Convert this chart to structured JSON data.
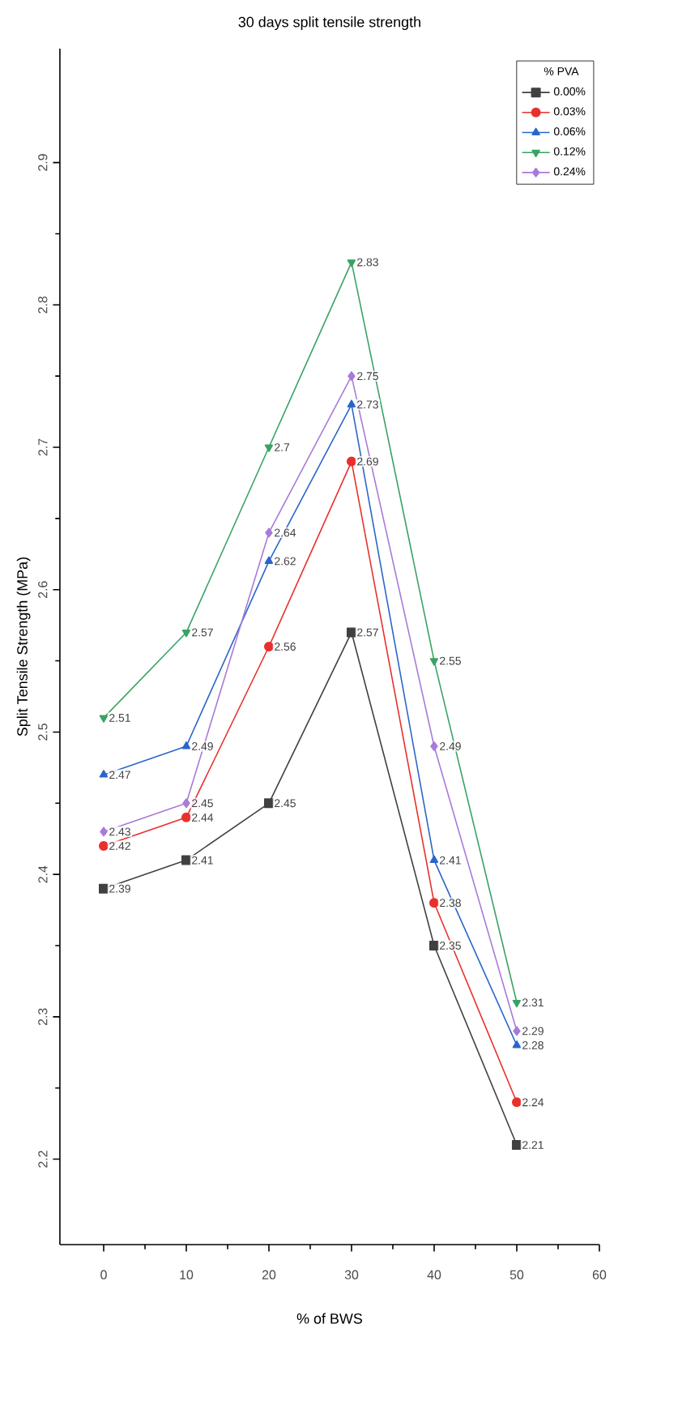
{
  "chart_data": {
    "type": "line",
    "title": "30 days split tensile strength",
    "xlabel": "% of BWS",
    "ylabel": "Split Tensile Strength (MPa)",
    "legend_title": "% PVA",
    "x": [
      0,
      10,
      20,
      30,
      40,
      50
    ],
    "series": [
      {
        "name": "0.00%",
        "color": "#404040",
        "marker": "square",
        "values": [
          2.39,
          2.41,
          2.45,
          2.57,
          2.35,
          2.21
        ]
      },
      {
        "name": "0.03%",
        "color": "#e8302c",
        "marker": "circle",
        "values": [
          2.42,
          2.44,
          2.56,
          2.69,
          2.38,
          2.24
        ]
      },
      {
        "name": "0.06%",
        "color": "#2a66c8",
        "marker": "triangle",
        "values": [
          2.47,
          2.49,
          2.62,
          2.73,
          2.41,
          2.28
        ]
      },
      {
        "name": "0.12%",
        "color": "#3aa264",
        "marker": "triangle down",
        "values": [
          2.51,
          2.57,
          2.7,
          2.83,
          2.55,
          2.31
        ]
      },
      {
        "name": "0.24%",
        "color": "#a97ad8",
        "marker": "diamond",
        "values": [
          2.43,
          2.45,
          2.64,
          2.75,
          2.49,
          2.29
        ]
      }
    ],
    "xlim": [
      -5.3,
      60
    ],
    "ylim": [
      2.14,
      2.98
    ],
    "xticks": [
      0,
      10,
      20,
      30,
      40,
      50,
      60
    ],
    "yticks": [
      2.2,
      2.3,
      2.4,
      2.5,
      2.6,
      2.7,
      2.8,
      2.9
    ],
    "data_labels": true,
    "legend": "top right",
    "grid": false,
    "line_style": "solid"
  }
}
